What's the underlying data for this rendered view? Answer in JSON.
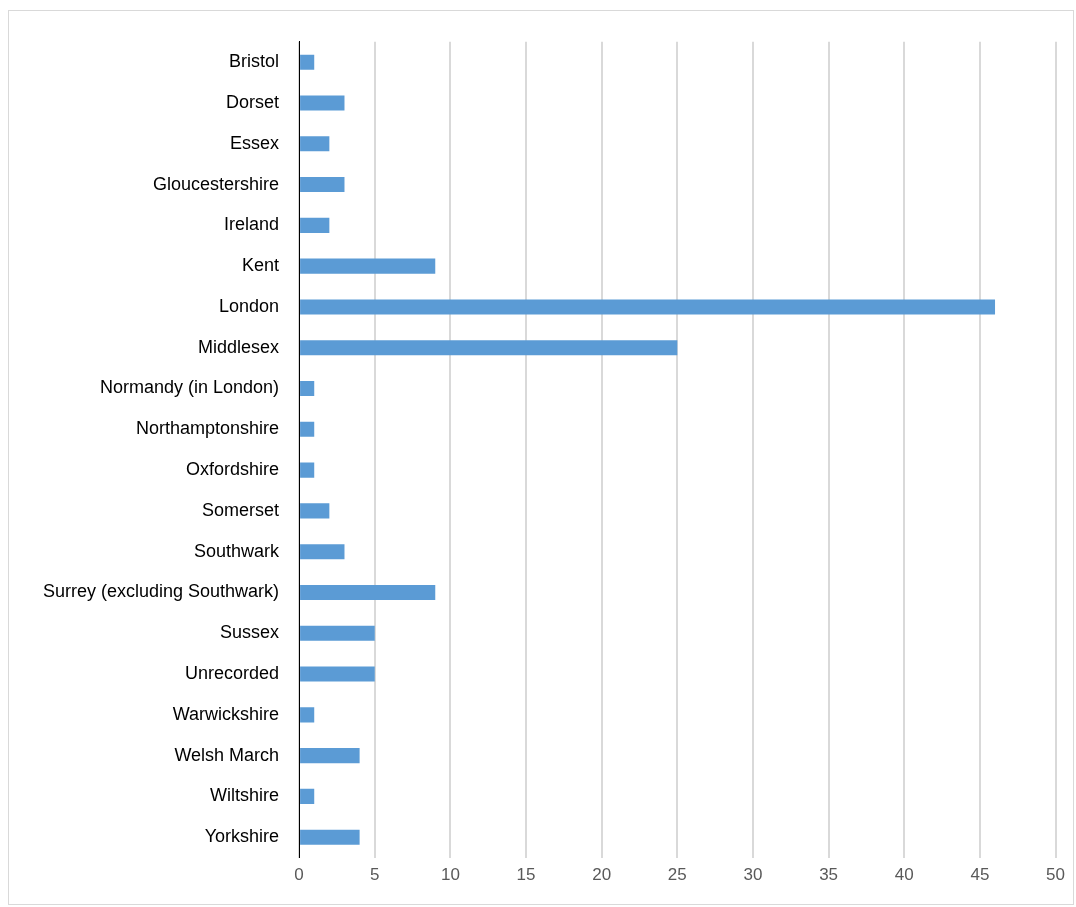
{
  "chart_data": {
    "type": "bar",
    "orientation": "horizontal",
    "categories": [
      "Bristol",
      "Dorset",
      "Essex",
      "Gloucestershire",
      "Ireland",
      "Kent",
      "London",
      "Middlesex",
      "Normandy (in London)",
      "Northamptonshire",
      "Oxfordshire",
      "Somerset",
      "Southwark",
      "Surrey (excluding Southwark)",
      "Sussex",
      "Unrecorded",
      "Warwickshire",
      "Welsh March",
      "Wiltshire",
      "Yorkshire"
    ],
    "values": [
      1,
      3,
      2,
      3,
      2,
      9,
      46,
      25,
      1,
      1,
      1,
      2,
      3,
      9,
      5,
      5,
      1,
      4,
      1,
      4
    ],
    "color": "#5b9bd5",
    "xlim": [
      0,
      50
    ],
    "xticks": [
      0,
      5,
      10,
      15,
      20,
      25,
      30,
      35,
      40,
      45,
      50
    ],
    "grid": "x",
    "legend": false
  }
}
